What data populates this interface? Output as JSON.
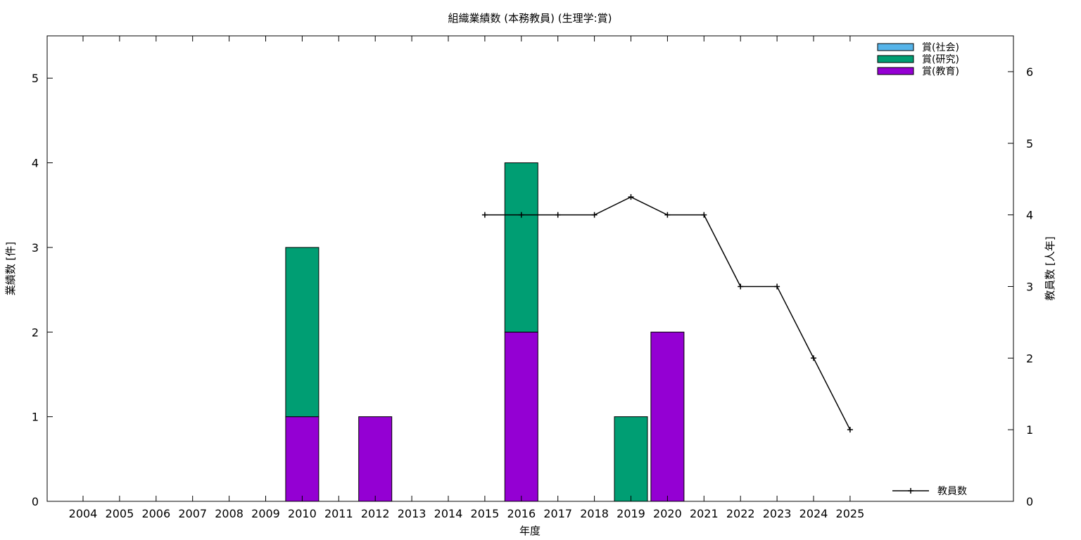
{
  "chart_data": {
    "type": "bar",
    "title": "組織業績数 (本務教員) (生理学:賞)",
    "xlabel": "年度",
    "ylabel": "業績数 [件]",
    "y2label": "教員数 [人年]",
    "categories": [
      "2004",
      "2005",
      "2006",
      "2007",
      "2008",
      "2009",
      "2010",
      "2011",
      "2012",
      "2013",
      "2014",
      "2015",
      "2016",
      "2017",
      "2018",
      "2019",
      "2020",
      "2021",
      "2022",
      "2023",
      "2024",
      "2025"
    ],
    "ylim": [
      0,
      5.5
    ],
    "y_ticks": [
      0,
      1,
      2,
      3,
      4,
      5
    ],
    "y2lim": [
      0,
      6.5
    ],
    "y2_ticks": [
      0,
      1,
      2,
      3,
      4,
      5,
      6
    ],
    "stacked": true,
    "series": [
      {
        "name": "賞(教育)",
        "color": "#9400d3",
        "values": [
          0,
          0,
          0,
          0,
          0,
          0,
          1,
          0,
          1,
          0,
          0,
          0,
          2,
          0,
          0,
          0,
          2,
          0,
          0,
          0,
          0,
          0
        ]
      },
      {
        "name": "賞(研究)",
        "color": "#009e73",
        "values": [
          0,
          0,
          0,
          0,
          0,
          0,
          2,
          0,
          0,
          0,
          0,
          0,
          2,
          0,
          0,
          1,
          0,
          0,
          0,
          0,
          0,
          0
        ]
      },
      {
        "name": "賞(社会)",
        "color": "#56b4e9",
        "values": [
          0,
          0,
          0,
          0,
          0,
          0,
          0,
          0,
          0,
          0,
          0,
          0,
          0,
          0,
          0,
          0,
          0,
          0,
          0,
          0,
          0,
          0
        ]
      }
    ],
    "line_series": {
      "name": "教員数",
      "color": "#000000",
      "axis": "y2",
      "x": [
        "2015",
        "2016",
        "2017",
        "2018",
        "2019",
        "2020",
        "2021",
        "2022",
        "2023",
        "2024",
        "2025"
      ],
      "values": [
        4,
        4,
        4,
        4,
        4.25,
        4,
        4,
        3,
        3,
        2,
        1
      ]
    },
    "legend_order": [
      "賞(社会)",
      "賞(研究)",
      "賞(教育)"
    ],
    "legend_position": "top-right",
    "line_legend_position": "bottom-right",
    "grid": false
  }
}
